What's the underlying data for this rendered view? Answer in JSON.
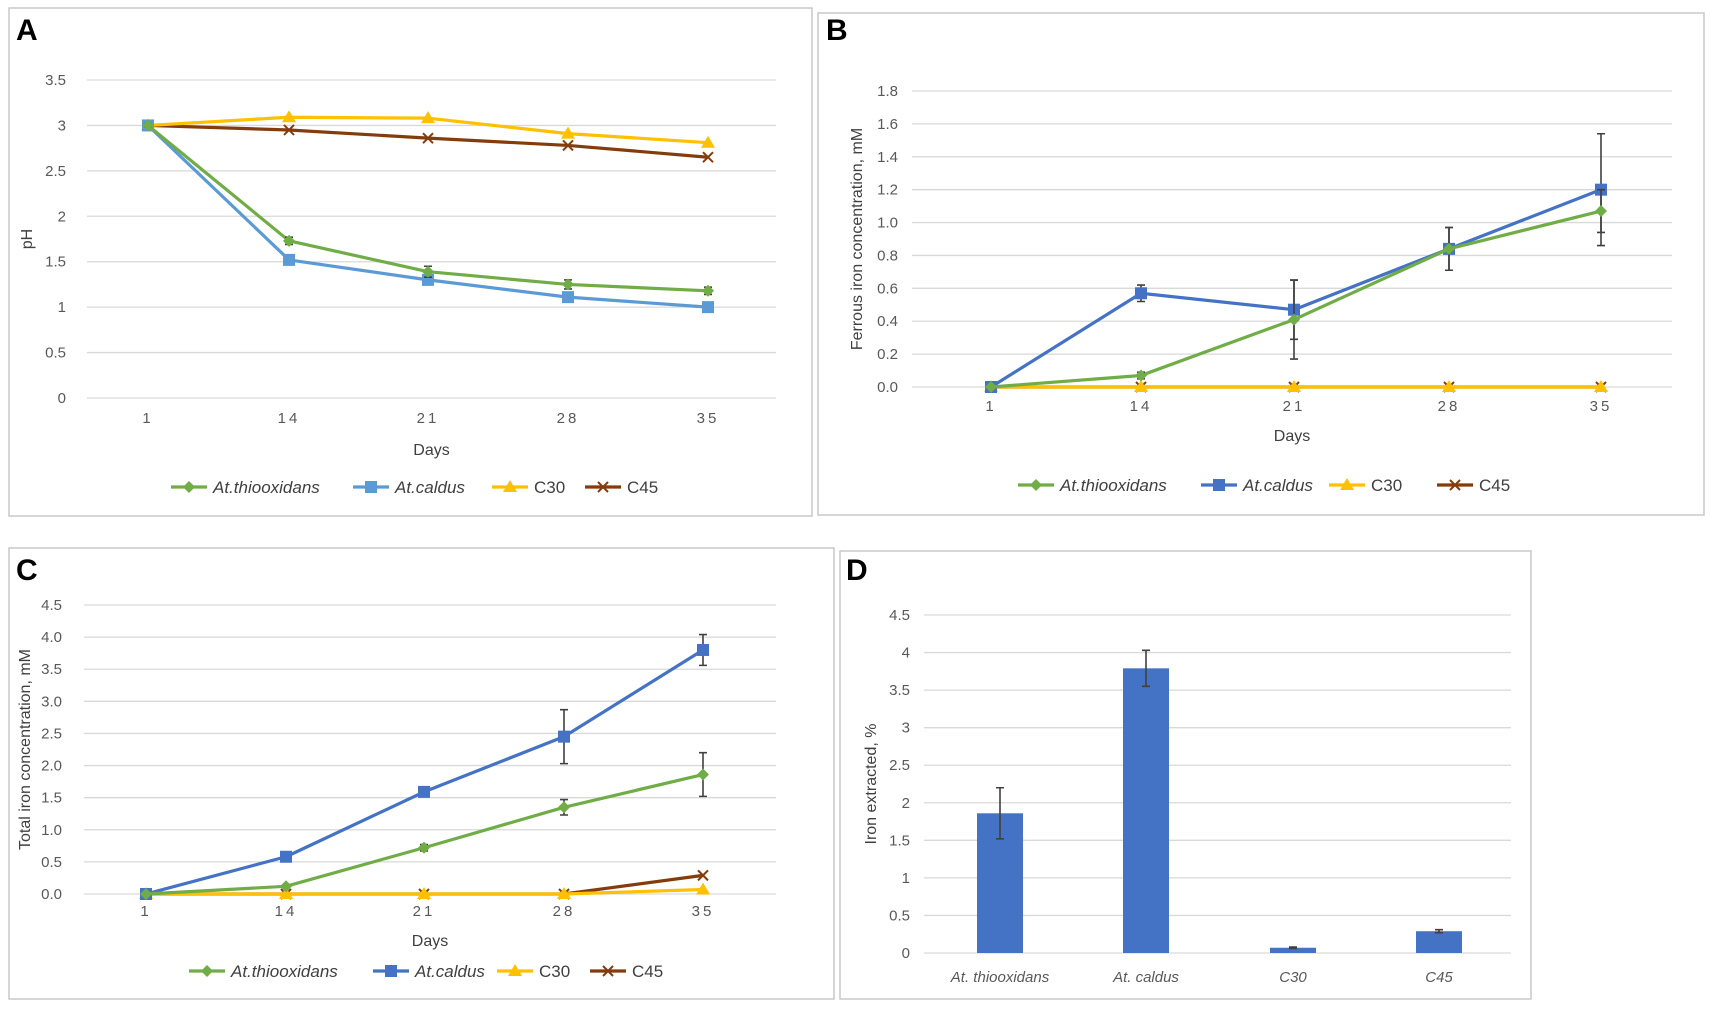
{
  "panels": {
    "A": "A",
    "B": "B",
    "C": "C",
    "D": "D"
  },
  "colors": {
    "thiooxidans": "#70ad47",
    "caldus_A": "#5b9bd5",
    "caldus": "#4472c4",
    "c30": "#ffc000",
    "c45": "#843c0c",
    "bar": "#4472c4"
  },
  "chart_data": [
    {
      "id": "A",
      "type": "line",
      "title": "",
      "xlabel": "Days",
      "ylabel": "pH",
      "categories": [
        "1",
        "14",
        "21",
        "28",
        "35"
      ],
      "ylim": [
        0,
        3.5
      ],
      "yticks": [
        "0",
        "0.5",
        "1",
        "1.5",
        "2",
        "2.5",
        "3",
        "3.5"
      ],
      "grid": true,
      "legend": "bottom",
      "series": [
        {
          "name": "At.thiooxidans",
          "italic": true,
          "marker": "diamond",
          "color": "#70ad47",
          "values": [
            3.0,
            1.73,
            1.39,
            1.25,
            1.18
          ],
          "errors": [
            0.02,
            0.04,
            0.06,
            0.05,
            0.04
          ]
        },
        {
          "name": "At.caldus",
          "italic": true,
          "marker": "square",
          "color": "#5b9bd5",
          "values": [
            3.0,
            1.52,
            1.3,
            1.11,
            1.0
          ],
          "errors": [
            0.02,
            0.03,
            0.05,
            0.05,
            0.03
          ]
        },
        {
          "name": "C30",
          "italic": false,
          "marker": "triangle",
          "color": "#ffc000",
          "values": [
            3.0,
            3.09,
            3.08,
            2.91,
            2.81
          ],
          "errors": [
            0,
            0,
            0,
            0,
            0
          ]
        },
        {
          "name": "C45",
          "italic": false,
          "marker": "x",
          "color": "#843c0c",
          "values": [
            3.0,
            2.95,
            2.86,
            2.78,
            2.65
          ],
          "errors": [
            0,
            0,
            0,
            0,
            0
          ]
        }
      ]
    },
    {
      "id": "B",
      "type": "line",
      "title": "",
      "xlabel": "Days",
      "ylabel": "Ferrous iron concentration, mM",
      "categories": [
        "1",
        "14",
        "21",
        "28",
        "35"
      ],
      "ylim": [
        0,
        1.8
      ],
      "yticks": [
        "0.0",
        "0.2",
        "0.4",
        "0.6",
        "0.8",
        "1.0",
        "1.2",
        "1.4",
        "1.6",
        "1.8"
      ],
      "grid": true,
      "legend": "bottom",
      "series": [
        {
          "name": "At.thiooxidans",
          "italic": true,
          "marker": "diamond",
          "color": "#70ad47",
          "values": [
            0.0,
            0.07,
            0.41,
            0.84,
            1.07
          ],
          "errors": [
            0.01,
            0.02,
            0.24,
            0.13,
            0.13
          ]
        },
        {
          "name": "At.caldus",
          "italic": true,
          "marker": "square",
          "color": "#4472c4",
          "values": [
            0.0,
            0.57,
            0.47,
            0.84,
            1.2
          ],
          "errors": [
            0.01,
            0.05,
            0.18,
            0.13,
            0.34
          ]
        },
        {
          "name": "C30",
          "italic": false,
          "marker": "triangle",
          "color": "#ffc000",
          "values": [
            0.0,
            0.0,
            0.0,
            0.0,
            0.0
          ],
          "errors": [
            0,
            0,
            0,
            0,
            0
          ]
        },
        {
          "name": "C45",
          "italic": false,
          "marker": "x",
          "color": "#843c0c",
          "values": [
            0.0,
            0.0,
            0.0,
            0.0,
            0.0
          ],
          "errors": [
            0,
            0,
            0,
            0,
            0
          ]
        }
      ]
    },
    {
      "id": "C",
      "type": "line",
      "title": "",
      "xlabel": "Days",
      "ylabel": "Total iron concentration, mM",
      "categories": [
        "1",
        "14",
        "21",
        "28",
        "35"
      ],
      "ylim": [
        0,
        4.5
      ],
      "yticks": [
        "0.0",
        "0.5",
        "1.0",
        "1.5",
        "2.0",
        "2.5",
        "3.0",
        "3.5",
        "4.0",
        "4.5"
      ],
      "grid": true,
      "legend": "bottom",
      "series": [
        {
          "name": "At.thiooxidans",
          "italic": true,
          "marker": "diamond",
          "color": "#70ad47",
          "values": [
            0.0,
            0.12,
            0.72,
            1.35,
            1.86
          ],
          "errors": [
            0.01,
            0.02,
            0.05,
            0.12,
            0.34
          ]
        },
        {
          "name": "At.caldus",
          "italic": true,
          "marker": "square",
          "color": "#4472c4",
          "values": [
            0.0,
            0.58,
            1.59,
            2.45,
            3.8
          ],
          "errors": [
            0.01,
            0.03,
            0.05,
            0.42,
            0.24
          ]
        },
        {
          "name": "C30",
          "italic": false,
          "marker": "triangle",
          "color": "#ffc000",
          "values": [
            0.0,
            0.0,
            0.0,
            0.0,
            0.07
          ],
          "errors": [
            0,
            0,
            0,
            0,
            0
          ]
        },
        {
          "name": "C45",
          "italic": false,
          "marker": "x",
          "color": "#843c0c",
          "values": [
            0.0,
            0.0,
            0.0,
            0.0,
            0.29
          ],
          "errors": [
            0,
            0,
            0,
            0,
            0
          ]
        }
      ]
    },
    {
      "id": "D",
      "type": "bar",
      "title": "",
      "xlabel": "",
      "ylabel": "Iron extracted, %",
      "categories": [
        "At. thiooxidans",
        "At. caldus",
        "C30",
        "C45"
      ],
      "values": [
        1.86,
        3.79,
        0.07,
        0.29
      ],
      "errors": [
        0.34,
        0.24,
        0.01,
        0.02
      ],
      "ylim": [
        0,
        4.5
      ],
      "yticks": [
        "0",
        "0.5",
        "1",
        "1.5",
        "2",
        "2.5",
        "3",
        "3.5",
        "4",
        "4.5"
      ],
      "grid": true,
      "legend": "none"
    }
  ]
}
